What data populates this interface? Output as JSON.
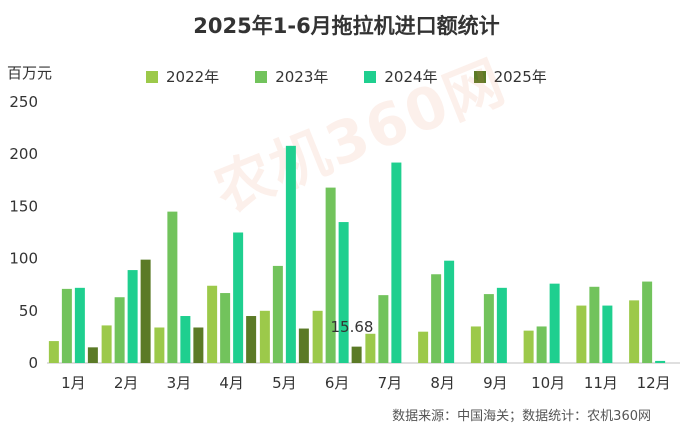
{
  "chart_data": {
    "type": "bar",
    "title": "2025年1-6月拖拉机进口额统计",
    "ylabel": "百万元",
    "ylim": [
      0,
      250
    ],
    "yticks": [
      0,
      50,
      100,
      150,
      200,
      250
    ],
    "categories": [
      "1月",
      "2月",
      "3月",
      "4月",
      "5月",
      "6月",
      "7月",
      "8月",
      "9月",
      "10月",
      "11月",
      "12月"
    ],
    "series": [
      {
        "name": "2022年",
        "color": "#9cc94a",
        "values": [
          21,
          36,
          34,
          74,
          50,
          50,
          28,
          30,
          35,
          31,
          55,
          60
        ]
      },
      {
        "name": "2023年",
        "color": "#72c35c",
        "values": [
          71,
          63,
          145,
          67,
          93,
          168,
          65,
          85,
          66,
          35,
          73,
          78
        ]
      },
      {
        "name": "2024年",
        "color": "#1fcf8f",
        "values": [
          72,
          89,
          45,
          125,
          208,
          135,
          192,
          98,
          72,
          76,
          55,
          2
        ]
      },
      {
        "name": "2025年",
        "color": "#5b7a26",
        "values": [
          15,
          99,
          34,
          45,
          33,
          15.68,
          null,
          null,
          null,
          null,
          null,
          null
        ]
      }
    ],
    "annotations": [
      {
        "text": "15.68"
      }
    ],
    "grid": false,
    "legend": "top"
  },
  "source_text": "数据来源：中国海关；数据统计：农机360网",
  "watermark_text": "农机360网"
}
